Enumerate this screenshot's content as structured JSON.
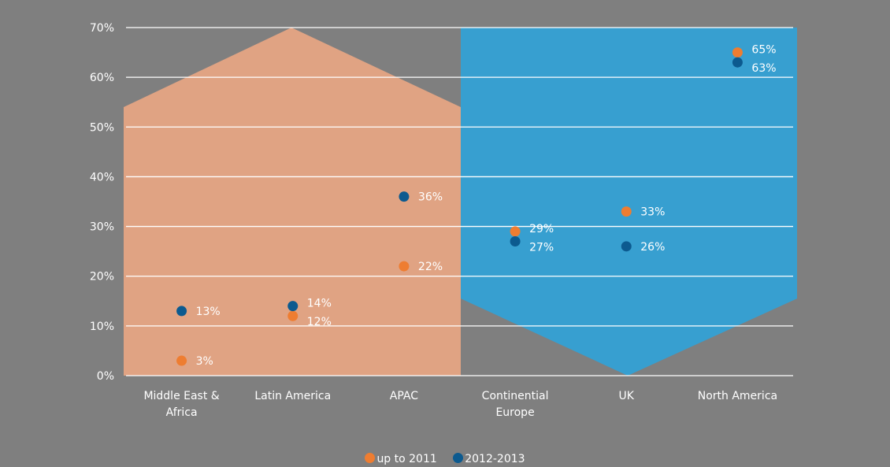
{
  "chart_data": {
    "type": "scatter",
    "categories": [
      "Middle East & Africa",
      "Latin America",
      "APAC",
      "Continential Europe",
      "UK",
      "North America"
    ],
    "category_lines": [
      [
        "Middle East &",
        "Africa"
      ],
      [
        "Latin America"
      ],
      [
        "APAC"
      ],
      [
        "Continential",
        "Europe"
      ],
      [
        "UK"
      ],
      [
        "North America"
      ]
    ],
    "series": [
      {
        "name": "up to 2011",
        "color": "#ee7d31",
        "values": [
          3,
          12,
          22,
          29,
          33,
          65
        ],
        "labels": [
          "3%",
          "12%",
          "22%",
          "29%",
          "33%",
          "65%"
        ]
      },
      {
        "name": "2012-2013",
        "color": "#0c5a8f",
        "values": [
          13,
          14,
          36,
          27,
          26,
          63
        ],
        "labels": [
          "13%",
          "14%",
          "36%",
          "27%",
          "26%",
          "63%"
        ]
      }
    ],
    "ylim": [
      0,
      70
    ],
    "yticks": [
      0,
      10,
      20,
      30,
      40,
      50,
      60,
      70
    ],
    "ytick_labels": [
      "0%",
      "10%",
      "20%",
      "30%",
      "40%",
      "50%",
      "60%",
      "70%"
    ],
    "grid": true,
    "legend_position": "bottom-center",
    "background": {
      "left_region": {
        "categories": [
          0,
          1,
          2
        ],
        "shape": "up-arrow",
        "color": "#e0a383"
      },
      "right_region": {
        "categories": [
          3,
          4,
          5
        ],
        "shape": "down-arrow",
        "color": "#379fd0"
      }
    },
    "plot_background": "#7f7f7f",
    "gridline_color": "#ffffff",
    "text_color": "#ffffff"
  }
}
